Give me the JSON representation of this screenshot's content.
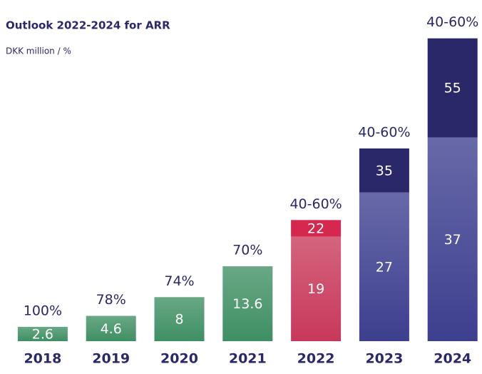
{
  "chart_data": {
    "type": "bar",
    "title": "Outlook 2022-2024 for ARR",
    "subtitle": "DKK million / %",
    "categories": [
      "2018",
      "2019",
      "2020",
      "2021",
      "2022",
      "2023",
      "2024"
    ],
    "series": [
      {
        "values": [
          2.6,
          4.6,
          8,
          13.6,
          19,
          27,
          37
        ],
        "colors": [
          "#3f8f63",
          "#3f8f63",
          "#3f8f63",
          "#3f8f63",
          "#c8385a",
          "#3d3f8f",
          "#3d3f8f"
        ]
      },
      {
        "values": [
          null,
          null,
          null,
          null,
          22,
          35,
          55
        ],
        "colors": [
          null,
          null,
          null,
          null,
          "#d6284f",
          "#2b2869",
          "#2b2869"
        ]
      }
    ],
    "annotations": [
      "100%",
      "78%",
      "74%",
      "70%",
      "40-60%",
      "40-60%",
      "40-60%"
    ],
    "ylim": [
      0,
      56
    ]
  }
}
